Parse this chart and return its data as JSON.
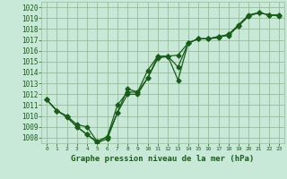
{
  "x": [
    0,
    1,
    2,
    3,
    4,
    5,
    6,
    7,
    8,
    9,
    10,
    11,
    12,
    13,
    14,
    15,
    16,
    17,
    18,
    19,
    20,
    21,
    22,
    23
  ],
  "line1": [
    1011.5,
    1010.5,
    1010.0,
    1009.2,
    1009.0,
    1007.65,
    1008.1,
    1011.0,
    1012.2,
    1012.2,
    1014.2,
    1015.5,
    1015.5,
    1015.6,
    1016.7,
    1017.1,
    1017.1,
    1017.3,
    1017.4,
    1018.3,
    1019.2,
    1019.5,
    1019.3,
    1019.3
  ],
  "line2": [
    1011.5,
    1010.5,
    1009.95,
    1009.0,
    1008.3,
    1007.55,
    1007.9,
    1010.3,
    1012.0,
    1012.0,
    1013.5,
    1015.3,
    1015.5,
    1013.3,
    1016.7,
    1017.1,
    1017.1,
    1017.3,
    1017.5,
    1018.4,
    1019.3,
    1019.5,
    1019.3,
    1019.2
  ],
  "line3": [
    1011.5,
    1010.5,
    1009.9,
    1009.0,
    1008.3,
    1007.65,
    1008.1,
    1010.3,
    1012.5,
    1012.2,
    1013.5,
    1015.5,
    1015.5,
    1014.5,
    1016.7,
    1017.1,
    1017.1,
    1017.2,
    1017.5,
    1018.3,
    1019.2,
    1019.5,
    1019.3,
    1019.3
  ],
  "bg_color": "#c8e8d8",
  "grid_color": "#99bb99",
  "line_color": "#1a5c1a",
  "title": "Graphe pression niveau de la mer (hPa)",
  "ylim": [
    1007.5,
    1020.5
  ],
  "yticks": [
    1008,
    1009,
    1010,
    1011,
    1012,
    1013,
    1014,
    1015,
    1016,
    1017,
    1018,
    1019,
    1020
  ],
  "xticks": [
    0,
    1,
    2,
    3,
    4,
    5,
    6,
    7,
    8,
    9,
    10,
    11,
    12,
    13,
    14,
    15,
    16,
    17,
    18,
    19,
    20,
    21,
    22,
    23
  ],
  "title_color": "#1a5c1a"
}
